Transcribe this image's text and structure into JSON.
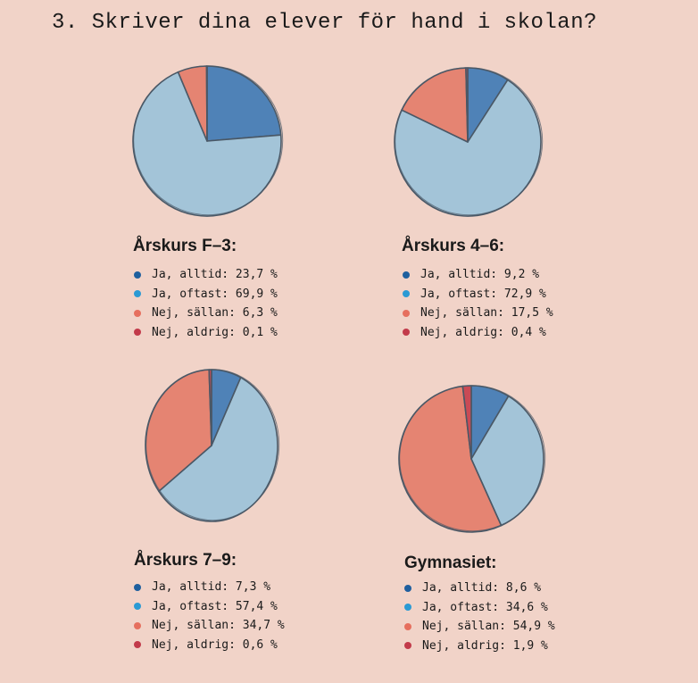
{
  "title": "3. Skriver dina elever för hand i skolan?",
  "colors": {
    "ja_alltid": "#4f82b7",
    "ja_oftast": "#a3c4d8",
    "nej_sallan": "#e58472",
    "nej_aldrig": "#c94a55",
    "dot_ja_alltid": "#1f5f9e",
    "dot_ja_oftast": "#2b9ad4",
    "dot_nej_sallan": "#e66f5e",
    "dot_nej_aldrig": "#c23a4a",
    "stroke": "#4a5866"
  },
  "chart_data": [
    {
      "type": "pie",
      "title": "Årskurs F–3:",
      "slices": [
        {
          "key": "ja_alltid",
          "label": "Ja, alltid: 23,7 %",
          "value": 23.7
        },
        {
          "key": "ja_oftast",
          "label": "Ja, oftast: 69,9 %",
          "value": 69.9
        },
        {
          "key": "nej_sallan",
          "label": "Nej, sällan: 6,3 %",
          "value": 6.3
        },
        {
          "key": "nej_aldrig",
          "label": "Nej, aldrig: 0,1 %",
          "value": 0.1
        }
      ]
    },
    {
      "type": "pie",
      "title": "Årskurs 4–6:",
      "slices": [
        {
          "key": "ja_alltid",
          "label": "Ja, alltid: 9,2 %",
          "value": 9.2
        },
        {
          "key": "ja_oftast",
          "label": "Ja, oftast: 72,9 %",
          "value": 72.9
        },
        {
          "key": "nej_sallan",
          "label": "Nej, sällan: 17,5 %",
          "value": 17.5
        },
        {
          "key": "nej_aldrig",
          "label": "Nej, aldrig: 0,4 %",
          "value": 0.4
        }
      ]
    },
    {
      "type": "pie",
      "title": "Årskurs 7–9:",
      "slices": [
        {
          "key": "ja_alltid",
          "label": "Ja, alltid: 7,3 %",
          "value": 7.3
        },
        {
          "key": "ja_oftast",
          "label": "Ja, oftast: 57,4 %",
          "value": 57.4
        },
        {
          "key": "nej_sallan",
          "label": "Nej, sällan: 34,7 %",
          "value": 34.7
        },
        {
          "key": "nej_aldrig",
          "label": "Nej, aldrig: 0,6 %",
          "value": 0.6
        }
      ]
    },
    {
      "type": "pie",
      "title": "Gymnasiet:",
      "slices": [
        {
          "key": "ja_alltid",
          "label": "Ja, alltid: 8,6 %",
          "value": 8.6
        },
        {
          "key": "ja_oftast",
          "label": "Ja, oftast: 34,6 %",
          "value": 34.6
        },
        {
          "key": "nej_sallan",
          "label": "Nej, sällan: 54,9 %",
          "value": 54.9
        },
        {
          "key": "nej_aldrig",
          "label": "Nej, aldrig: 1,9 %",
          "value": 1.9
        }
      ]
    }
  ]
}
